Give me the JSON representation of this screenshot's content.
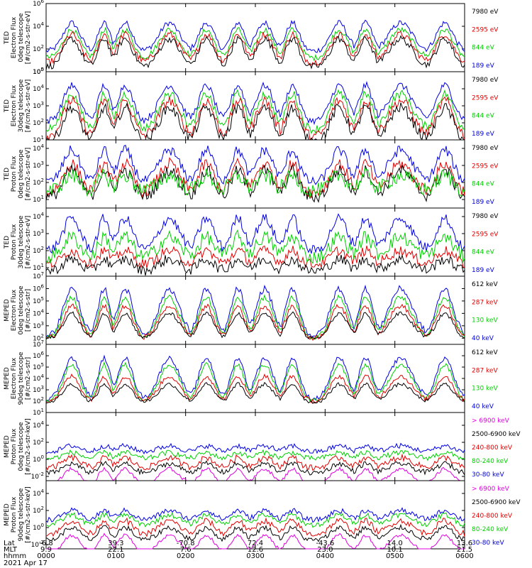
{
  "chart_data": [
    {
      "type": "line",
      "ylabel_lines": [
        "TED",
        "Electron Flux",
        "0deg telescope",
        "[#/cm2-s-str-eV]"
      ],
      "ylim_exp": [
        0,
        6
      ],
      "ytick_exps": [
        0,
        2,
        4,
        6
      ],
      "legend": [
        {
          "label": "7980 eV",
          "color": "#000000"
        },
        {
          "label": "2595 eV",
          "color": "#e00000"
        },
        {
          "label": "844 eV",
          "color": "#00d000"
        },
        {
          "label": "189 eV",
          "color": "#0000e0"
        }
      ],
      "series": [
        {
          "color": "#0000e0",
          "base": 1.8,
          "peak": 4.3,
          "noise": 0.25
        },
        {
          "color": "#00d000",
          "base": 1.2,
          "peak": 3.7,
          "noise": 0.25
        },
        {
          "color": "#e00000",
          "base": 0.8,
          "peak": 3.3,
          "noise": 0.3
        },
        {
          "color": "#000000",
          "base": 0.4,
          "peak": 2.9,
          "noise": 0.3
        }
      ]
    },
    {
      "type": "line",
      "ylabel_lines": [
        "TED",
        "Electron Flux",
        "30deg telescope",
        "[#/cm2-s-str-eV]"
      ],
      "ylim_exp": [
        1,
        5
      ],
      "ytick_exps": [
        1,
        2,
        3,
        4,
        5
      ],
      "legend": [
        {
          "label": "7980 eV",
          "color": "#000000"
        },
        {
          "label": "2595 eV",
          "color": "#e00000"
        },
        {
          "label": "844 eV",
          "color": "#00d000"
        },
        {
          "label": "189 eV",
          "color": "#0000e0"
        }
      ],
      "series": [
        {
          "color": "#0000e0",
          "base": 2.1,
          "peak": 4.2,
          "noise": 0.2
        },
        {
          "color": "#00d000",
          "base": 1.6,
          "peak": 3.7,
          "noise": 0.25
        },
        {
          "color": "#e00000",
          "base": 1.2,
          "peak": 3.3,
          "noise": 0.3
        },
        {
          "color": "#000000",
          "base": 0.9,
          "peak": 2.9,
          "noise": 0.3
        }
      ]
    },
    {
      "type": "line",
      "ylabel_lines": [
        "TED",
        "Proton Flux",
        "0deg telescope",
        "[#/cm2-s-str-eV]"
      ],
      "ylim_exp": [
        0.5,
        4.5
      ],
      "ytick_exps": [
        1,
        2,
        3,
        4
      ],
      "legend": [
        {
          "label": "7980 eV",
          "color": "#000000"
        },
        {
          "label": "2595 eV",
          "color": "#e00000"
        },
        {
          "label": "844 eV",
          "color": "#00d000"
        },
        {
          "label": "189 eV",
          "color": "#0000e0"
        }
      ],
      "series": [
        {
          "color": "#0000e0",
          "base": 2.0,
          "peak": 3.9,
          "noise": 0.3
        },
        {
          "color": "#e00000",
          "base": 1.4,
          "peak": 3.1,
          "noise": 0.35
        },
        {
          "color": "#000000",
          "base": 1.1,
          "peak": 2.7,
          "noise": 0.35
        },
        {
          "color": "#00d000",
          "base": 1.5,
          "peak": 2.4,
          "noise": 0.45
        }
      ]
    },
    {
      "type": "line",
      "ylabel_lines": [
        "TED",
        "Proton Flux",
        "30deg telescope",
        "[#/cm2-s-str-eV]"
      ],
      "ylim_exp": [
        0.5,
        4.5
      ],
      "ytick_exps": [
        1,
        2,
        3,
        4
      ],
      "legend": [
        {
          "label": "7980 eV",
          "color": "#000000"
        },
        {
          "label": "2595 eV",
          "color": "#e00000"
        },
        {
          "label": "844 eV",
          "color": "#00d000"
        },
        {
          "label": "189 eV",
          "color": "#0000e0"
        }
      ],
      "series": [
        {
          "color": "#0000e0",
          "base": 2.0,
          "peak": 3.9,
          "noise": 0.3
        },
        {
          "color": "#e00000",
          "base": 1.2,
          "peak": 2.0,
          "noise": 0.3
        },
        {
          "color": "#000000",
          "base": 0.8,
          "peak": 1.5,
          "noise": 0.3
        },
        {
          "color": "#00d000",
          "base": 1.6,
          "peak": 2.8,
          "noise": 0.4
        }
      ]
    },
    {
      "type": "line",
      "ylabel_lines": [
        "MEPED",
        "Electron Flux",
        "0deg telescope",
        "[#/cm2-s-str]"
      ],
      "ylim_exp": [
        1.5,
        7
      ],
      "ytick_exps": [
        2,
        3,
        4,
        5,
        6,
        7
      ],
      "legend": [
        {
          "label": "612 keV",
          "color": "#000000"
        },
        {
          "label": "287 keV",
          "color": "#e00000"
        },
        {
          "label": "130 keV",
          "color": "#00d000"
        },
        {
          "label": "40 keV",
          "color": "#0000e0"
        }
      ],
      "series": [
        {
          "color": "#0000e0",
          "base": 2.2,
          "peak": 6.0,
          "noise": 0.25
        },
        {
          "color": "#00d000",
          "base": 2.0,
          "peak": 5.3,
          "noise": 0.2
        },
        {
          "color": "#e00000",
          "base": 2.0,
          "peak": 4.6,
          "noise": 0.2
        },
        {
          "color": "#000000",
          "base": 1.95,
          "peak": 4.0,
          "noise": 0.15
        }
      ]
    },
    {
      "type": "line",
      "ylabel_lines": [
        "MEPED",
        "Electron Flux",
        "90deg telescope",
        "[#/cm2-s-str]"
      ],
      "ylim_exp": [
        1,
        7
      ],
      "ytick_exps": [
        1,
        2,
        3,
        4,
        5,
        6,
        7
      ],
      "legend": [
        {
          "label": "612 keV",
          "color": "#000000"
        },
        {
          "label": "287 keV",
          "color": "#e00000"
        },
        {
          "label": "130 keV",
          "color": "#00d000"
        },
        {
          "label": "40 keV",
          "color": "#0000e0"
        }
      ],
      "series": [
        {
          "color": "#0000e0",
          "base": 2.2,
          "peak": 5.8,
          "noise": 0.2
        },
        {
          "color": "#00d000",
          "base": 2.0,
          "peak": 5.2,
          "noise": 0.2
        },
        {
          "color": "#e00000",
          "base": 2.0,
          "peak": 4.2,
          "noise": 0.2
        },
        {
          "color": "#000000",
          "base": 1.9,
          "peak": 3.5,
          "noise": 0.15
        }
      ]
    },
    {
      "type": "line",
      "ylabel_lines": [
        "MEPED",
        "Proton Flux",
        "0deg telescope",
        "[#/cm2-s-str-keV]"
      ],
      "ylim_exp": [
        -2.5,
        5.5
      ],
      "ytick_exps": [
        -2,
        0,
        2,
        4
      ],
      "legend": [
        {
          "label": "> 6900 keV",
          "color": "#e000e0"
        },
        {
          "label": "2500-6900 keV",
          "color": "#000000"
        },
        {
          "label": "240-800 keV",
          "color": "#e00000"
        },
        {
          "label": "80-240 keV",
          "color": "#00d000"
        },
        {
          "label": "30-80 keV",
          "color": "#0000e0"
        }
      ],
      "series": [
        {
          "color": "#0000e0",
          "base": 0.9,
          "peak": 1.6,
          "noise": 0.3
        },
        {
          "color": "#00d000",
          "base": 0.1,
          "peak": 0.8,
          "noise": 0.3
        },
        {
          "color": "#e00000",
          "base": -1.0,
          "peak": 0.2,
          "noise": 0.35
        },
        {
          "color": "#000000",
          "base": -1.6,
          "peak": -0.5,
          "noise": 0.3
        },
        {
          "color": "#e000e0",
          "base": -3.0,
          "peak": -1.1,
          "noise": 0.2
        }
      ]
    },
    {
      "type": "line",
      "ylabel_lines": [
        "MEPED",
        "Proton Flux",
        "90deg telescope",
        "[#/cm2-s-str-keV]"
      ],
      "ylim_exp": [
        -2.5,
        5.5
      ],
      "ytick_exps": [
        -2,
        0,
        2,
        4
      ],
      "legend": [
        {
          "label": "> 6900 keV",
          "color": "#e000e0"
        },
        {
          "label": "2500-6900 keV",
          "color": "#000000"
        },
        {
          "label": "240-800 keV",
          "color": "#e00000"
        },
        {
          "label": "80-240 keV",
          "color": "#00d000"
        },
        {
          "label": "30-80 keV",
          "color": "#0000e0"
        }
      ],
      "series": [
        {
          "color": "#0000e0",
          "base": 0.9,
          "peak": 2.0,
          "noise": 0.3
        },
        {
          "color": "#00d000",
          "base": 0.3,
          "peak": 1.5,
          "noise": 0.3
        },
        {
          "color": "#e00000",
          "base": -0.8,
          "peak": 0.8,
          "noise": 0.35
        },
        {
          "color": "#000000",
          "base": -1.5,
          "peak": 0.0,
          "noise": 0.3
        },
        {
          "color": "#e000e0",
          "base": -3.0,
          "peak": -0.9,
          "noise": 0.2
        }
      ]
    }
  ],
  "x_axis": {
    "row_labels": [
      "Lat",
      "MLT",
      "hhmm"
    ],
    "date_label": "2021 Apr 17",
    "ticks": [
      {
        "time_min": 0,
        "lat": "-6.8",
        "mlt": "9.9",
        "hhmm": "0000"
      },
      {
        "time_min": 60,
        "lat": "39.3",
        "mlt": "22.1",
        "hhmm": "0100"
      },
      {
        "time_min": 120,
        "lat": "-70.8",
        "mlt": "7.6",
        "hhmm": "0200"
      },
      {
        "time_min": 180,
        "lat": "72.4",
        "mlt": "12.6",
        "hhmm": "0300"
      },
      {
        "time_min": 240,
        "lat": "-43.6",
        "mlt": "23.0",
        "hhmm": "0400"
      },
      {
        "time_min": 300,
        "lat": "14.0",
        "mlt": "10.1",
        "hhmm": "0500"
      },
      {
        "time_min": 360,
        "lat": "13.6",
        "mlt": "21.5",
        "hhmm": "0600"
      }
    ],
    "xlim_min": [
      0,
      360
    ]
  }
}
